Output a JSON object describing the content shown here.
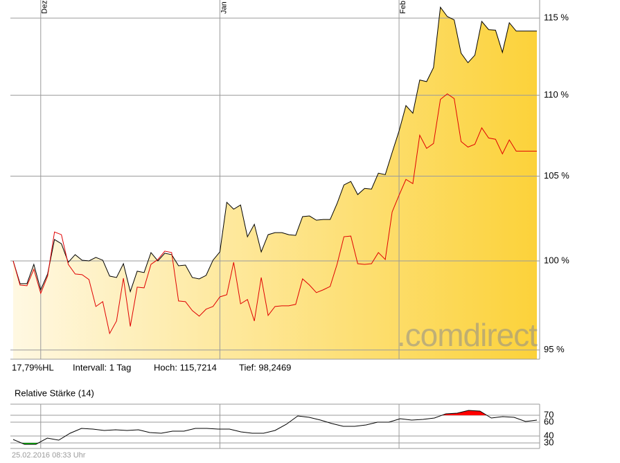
{
  "chart_data": [
    {
      "type": "area-line",
      "log_scale": true,
      "grid": true,
      "x": [
        null,
        null,
        null,
        null,
        "Dez",
        null,
        null,
        null,
        null,
        null,
        null,
        null,
        null,
        null,
        null,
        null,
        null,
        null,
        null,
        null,
        null,
        null,
        null,
        null,
        null,
        null,
        null,
        null,
        null,
        null,
        "Jan",
        null,
        null,
        null,
        null,
        null,
        null,
        null,
        null,
        null,
        null,
        null,
        null,
        null,
        null,
        null,
        null,
        null,
        null,
        null,
        null,
        null,
        null,
        null,
        null,
        null,
        "Feb",
        null,
        null,
        null,
        null,
        null,
        null,
        null,
        null,
        null,
        null,
        null,
        null,
        null,
        null,
        null,
        null,
        null,
        null,
        null,
        null
      ],
      "series": [
        {
          "name": null,
          "color": "#000000",
          "fill_gradient": [
            "#fff8e2",
            "#fcd23a"
          ],
          "values": [
            100.0,
            98.7,
            98.7,
            99.8,
            98.35,
            99.25,
            101.24,
            100.99,
            99.92,
            100.36,
            100.04,
            100.0,
            100.2,
            100.04,
            99.13,
            99.05,
            99.84,
            98.25,
            99.41,
            99.33,
            100.48,
            100.0,
            100.44,
            100.36,
            99.72,
            99.76,
            99.05,
            98.97,
            99.17,
            100.04,
            100.52,
            103.43,
            103.02,
            103.27,
            101.4,
            102.13,
            100.52,
            101.52,
            101.64,
            101.64,
            101.52,
            101.48,
            102.58,
            102.62,
            102.37,
            102.41,
            102.41,
            103.35,
            104.47,
            104.68,
            103.89,
            104.26,
            104.22,
            105.18,
            105.09,
            106.44,
            107.76,
            109.35,
            108.87,
            110.97,
            110.87,
            111.77,
            115.72,
            115.1,
            114.88,
            112.7,
            112.08,
            112.57,
            114.78,
            114.24,
            114.2,
            112.75,
            114.69,
            114.14,
            114.14,
            114.14,
            114.14
          ]
        },
        {
          "name": null,
          "color": "#e00000",
          "values": [
            100.0,
            98.62,
            98.58,
            99.52,
            98.15,
            99.13,
            101.68,
            101.52,
            99.8,
            99.25,
            99.21,
            98.93,
            97.41,
            97.68,
            95.91,
            96.6,
            99.01,
            96.3,
            98.5,
            98.46,
            99.8,
            100.08,
            100.56,
            100.48,
            97.72,
            97.68,
            97.18,
            96.87,
            97.26,
            97.41,
            97.95,
            98.07,
            99.92,
            97.56,
            97.8,
            96.6,
            99.05,
            96.91,
            97.41,
            97.45,
            97.45,
            97.53,
            98.97,
            98.62,
            98.19,
            98.35,
            98.54,
            99.8,
            101.4,
            101.44,
            99.84,
            99.8,
            99.84,
            100.48,
            100.08,
            102.86,
            103.85,
            104.8,
            104.55,
            107.5,
            106.69,
            106.99,
            109.74,
            110.09,
            109.79,
            107.11,
            106.77,
            106.94,
            107.96,
            107.33,
            107.25,
            106.35,
            107.21,
            106.52,
            106.52,
            106.52,
            106.52
          ]
        }
      ],
      "ylim": [
        94.5,
        116.2
      ],
      "yticks": [
        {
          "value": 95,
          "label": "95 %"
        },
        {
          "value": 100,
          "label": "100 %"
        },
        {
          "value": 105,
          "label": "105 %"
        },
        {
          "value": 110,
          "label": "110 %"
        },
        {
          "value": 115,
          "label": "115 %"
        }
      ],
      "watermark": ".comdirect",
      "stats": [
        "17,79%HL",
        "Intervall: 1 Tag",
        "Hoch: 115,7214",
        "Tief: 98,2469"
      ]
    },
    {
      "type": "rsi",
      "title": "Relative Stärke (14)",
      "color": "#000000",
      "upper_band": 70,
      "lower_band": 30,
      "upper_color": "#ff0000",
      "lower_color": "#00b000",
      "values": [
        35,
        28,
        28,
        37,
        34,
        44,
        51,
        50,
        48,
        49,
        48,
        49,
        45,
        44,
        47,
        47,
        51,
        51,
        50,
        50,
        46,
        44,
        44,
        48,
        57,
        69,
        67,
        63,
        58,
        54,
        54,
        56,
        60,
        60,
        65,
        63,
        64,
        66,
        72,
        73,
        77,
        76,
        66,
        68,
        67,
        61,
        63
      ],
      "ylim": [
        22,
        86
      ],
      "yticks": [
        30,
        40,
        60,
        70
      ]
    }
  ],
  "footer": "25.02.2016 08:33 Uhr"
}
